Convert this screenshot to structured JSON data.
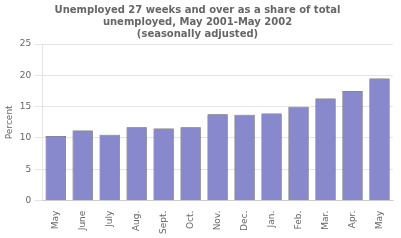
{
  "chart_data": {
    "type": "bar",
    "title": "Unemployed 27 weeks and over as a share of total\nunemployed, May 2001-May 2002\n(seasonally adjusted)",
    "y_label": "Percent",
    "categories": [
      "May",
      "June",
      "July",
      "Aug.",
      "Sept.",
      "Oct.",
      "Nov.",
      "Dec.",
      "Jan.",
      "Feb.",
      "Mar.",
      "Apr.",
      "May"
    ],
    "values": [
      10.3,
      11.2,
      10.5,
      11.7,
      11.5,
      11.7,
      13.8,
      13.7,
      13.9,
      15.0,
      16.3,
      17.5,
      19.5
    ],
    "color": "#8888cc",
    "ylim": [
      0,
      25
    ],
    "yticks": [
      0,
      5,
      10,
      15,
      20,
      25
    ],
    "grid": true
  }
}
